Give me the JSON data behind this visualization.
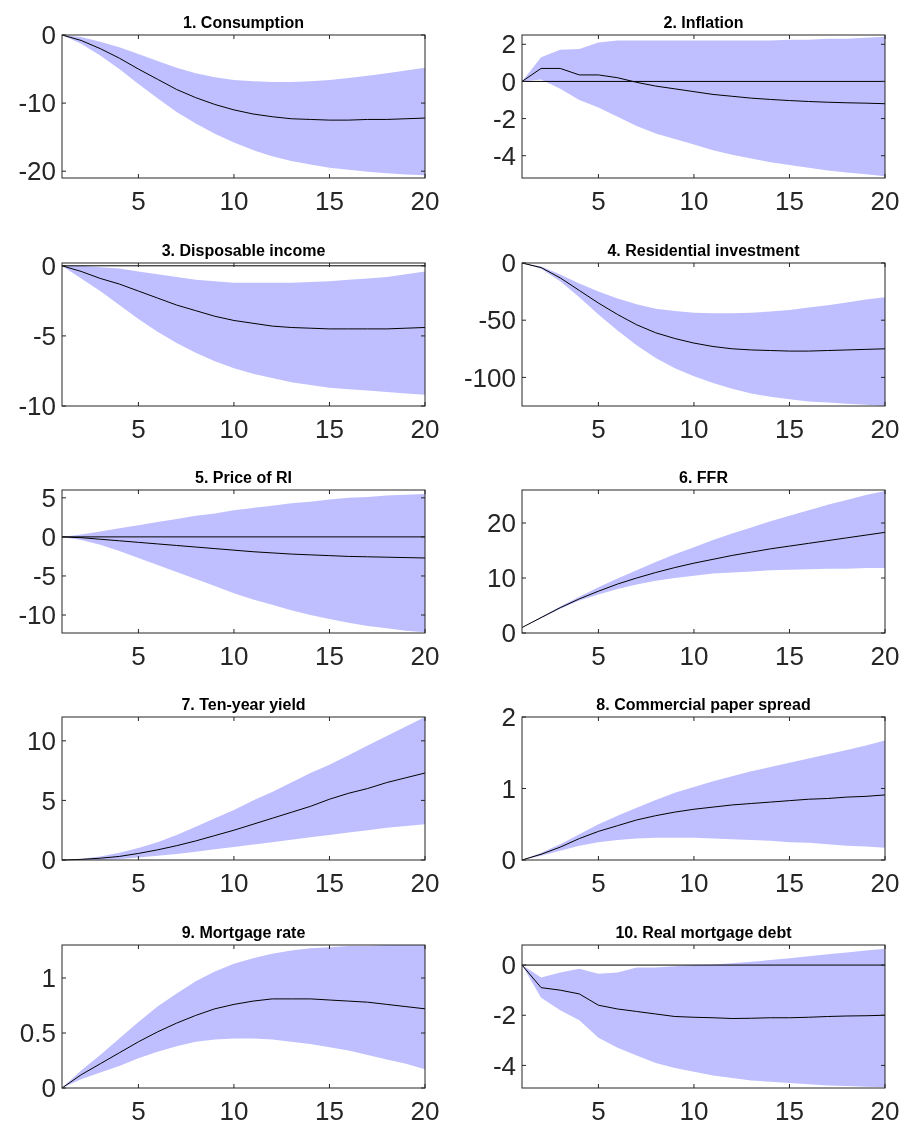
{
  "chart_data": [
    {
      "type": "line",
      "title": "1. Consumption",
      "x": [
        1,
        2,
        3,
        4,
        5,
        6,
        7,
        8,
        9,
        10,
        11,
        12,
        13,
        14,
        15,
        16,
        17,
        18,
        19,
        20
      ],
      "xlim": [
        1,
        20
      ],
      "xticks": [
        5,
        10,
        15,
        20
      ],
      "ylim": [
        -21,
        0
      ],
      "yticks": [
        -20,
        -10,
        0
      ],
      "series": [
        {
          "color": "#000000",
          "values": [
            0,
            -0.8,
            -2,
            -3.4,
            -5,
            -6.5,
            -8,
            -9.2,
            -10.2,
            -11,
            -11.6,
            -12,
            -12.3,
            -12.4,
            -12.5,
            -12.5,
            -12.4,
            -12.4,
            -12.3,
            -12.2
          ],
          "upper": [
            0,
            -0.3,
            -1,
            -1.8,
            -2.8,
            -3.8,
            -4.8,
            -5.6,
            -6.2,
            -6.6,
            -6.8,
            -6.9,
            -6.9,
            -6.8,
            -6.6,
            -6.3,
            -6,
            -5.6,
            -5.2,
            -4.8
          ],
          "lower": [
            0,
            -1.3,
            -3,
            -5,
            -7.2,
            -9.3,
            -11.3,
            -13,
            -14.5,
            -15.8,
            -16.9,
            -17.8,
            -18.5,
            -19,
            -19.5,
            -19.8,
            -20.1,
            -20.3,
            -20.5,
            -20.6
          ]
        }
      ]
    },
    {
      "type": "line",
      "title": "2. Inflation",
      "x": [
        1,
        2,
        3,
        4,
        5,
        6,
        7,
        8,
        9,
        10,
        11,
        12,
        13,
        14,
        15,
        16,
        17,
        18,
        19,
        20
      ],
      "xlim": [
        1,
        20
      ],
      "xticks": [
        5,
        10,
        15,
        20
      ],
      "ylim": [
        -5.2,
        2.5
      ],
      "yticks": [
        -4,
        -2,
        0,
        2
      ],
      "series": [
        {
          "color": "#000000",
          "values": [
            0,
            0.7,
            0.7,
            0.35,
            0.35,
            0.2,
            -0.05,
            -0.25,
            -0.4,
            -0.55,
            -0.7,
            -0.8,
            -0.9,
            -0.97,
            -1.03,
            -1.08,
            -1.12,
            -1.15,
            -1.17,
            -1.2
          ],
          "upper": [
            0,
            1.3,
            1.7,
            1.75,
            2.1,
            2.2,
            2.2,
            2.2,
            2.2,
            2.2,
            2.2,
            2.2,
            2.2,
            2.2,
            2.25,
            2.25,
            2.3,
            2.3,
            2.35,
            2.4
          ],
          "lower": [
            0,
            0.1,
            -0.4,
            -1,
            -1.4,
            -1.9,
            -2.4,
            -2.8,
            -3.1,
            -3.4,
            -3.7,
            -3.95,
            -4.15,
            -4.35,
            -4.5,
            -4.65,
            -4.8,
            -4.9,
            -5,
            -5.1
          ]
        }
      ],
      "ref_lines": [
        {
          "axis": "y",
          "value": 0,
          "color": "#000000"
        }
      ]
    },
    {
      "type": "line",
      "title": "3. Disposable income",
      "x": [
        1,
        2,
        3,
        4,
        5,
        6,
        7,
        8,
        9,
        10,
        11,
        12,
        13,
        14,
        15,
        16,
        17,
        18,
        19,
        20
      ],
      "xlim": [
        1,
        20
      ],
      "xticks": [
        5,
        10,
        15,
        20
      ],
      "ylim": [
        -10,
        0.2
      ],
      "yticks": [
        -10,
        -5,
        0
      ],
      "series": [
        {
          "color": "#000000",
          "values": [
            0,
            -0.4,
            -0.9,
            -1.3,
            -1.8,
            -2.3,
            -2.8,
            -3.2,
            -3.6,
            -3.9,
            -4.1,
            -4.3,
            -4.4,
            -4.45,
            -4.5,
            -4.5,
            -4.5,
            -4.5,
            -4.45,
            -4.4
          ],
          "upper": [
            0,
            0,
            -0.1,
            -0.2,
            -0.4,
            -0.6,
            -0.8,
            -1,
            -1.1,
            -1.2,
            -1.2,
            -1.2,
            -1.2,
            -1.15,
            -1.1,
            -1,
            -0.9,
            -0.8,
            -0.6,
            -0.4
          ],
          "lower": [
            0,
            -0.9,
            -1.8,
            -2.8,
            -3.8,
            -4.7,
            -5.5,
            -6.2,
            -6.8,
            -7.3,
            -7.7,
            -8,
            -8.3,
            -8.5,
            -8.7,
            -8.8,
            -8.9,
            -9,
            -9.1,
            -9.2
          ]
        }
      ],
      "ref_lines": [
        {
          "axis": "y",
          "value": 0,
          "color": "#000000"
        }
      ]
    },
    {
      "type": "line",
      "title": "4. Residential investment",
      "x": [
        1,
        2,
        3,
        4,
        5,
        6,
        7,
        8,
        9,
        10,
        11,
        12,
        13,
        14,
        15,
        16,
        17,
        18,
        19,
        20
      ],
      "xlim": [
        1,
        20
      ],
      "xticks": [
        5,
        10,
        15,
        20
      ],
      "ylim": [
        -125,
        0
      ],
      "yticks": [
        -100,
        -50,
        0
      ],
      "series": [
        {
          "color": "#000000",
          "values": [
            0,
            -4,
            -13,
            -24,
            -35,
            -45,
            -54,
            -61,
            -66,
            -70,
            -73,
            -75,
            -76,
            -76.5,
            -77,
            -77,
            -76.5,
            -76,
            -75.5,
            -75
          ],
          "upper": [
            0,
            -3,
            -10,
            -18,
            -25,
            -31,
            -36,
            -40,
            -42,
            -43.5,
            -44,
            -44,
            -43.5,
            -42.5,
            -41,
            -39,
            -37,
            -34.5,
            -32,
            -30
          ],
          "lower": [
            0,
            -5,
            -16,
            -30,
            -45,
            -59,
            -72,
            -83,
            -92,
            -99,
            -105,
            -110,
            -114,
            -117,
            -119,
            -121,
            -122,
            -123,
            -124,
            -125
          ]
        }
      ]
    },
    {
      "type": "line",
      "title": "5. Price of RI",
      "x": [
        1,
        2,
        3,
        4,
        5,
        6,
        7,
        8,
        9,
        10,
        11,
        12,
        13,
        14,
        15,
        16,
        17,
        18,
        19,
        20
      ],
      "xlim": [
        1,
        20
      ],
      "xticks": [
        5,
        10,
        15,
        20
      ],
      "ylim": [
        -12.3,
        6
      ],
      "yticks": [
        -10,
        -5,
        0,
        5
      ],
      "series": [
        {
          "color": "#000000",
          "values": [
            0,
            -0.1,
            -0.3,
            -0.5,
            -0.7,
            -0.9,
            -1.1,
            -1.3,
            -1.5,
            -1.7,
            -1.9,
            -2.05,
            -2.2,
            -2.3,
            -2.4,
            -2.5,
            -2.55,
            -2.6,
            -2.65,
            -2.7
          ],
          "upper": [
            0,
            0.3,
            0.7,
            1.1,
            1.5,
            1.9,
            2.3,
            2.7,
            3,
            3.4,
            3.7,
            4,
            4.3,
            4.5,
            4.8,
            5,
            5.1,
            5.3,
            5.4,
            5.5
          ],
          "lower": [
            0,
            -0.4,
            -1,
            -1.8,
            -2.7,
            -3.6,
            -4.5,
            -5.4,
            -6.3,
            -7.2,
            -8,
            -8.7,
            -9.4,
            -10,
            -10.5,
            -11,
            -11.4,
            -11.7,
            -12,
            -12.2
          ]
        }
      ],
      "ref_lines": [
        {
          "axis": "y",
          "value": 0,
          "color": "#000000"
        }
      ]
    },
    {
      "type": "line",
      "title": "6. FFR",
      "x": [
        1,
        2,
        3,
        4,
        5,
        6,
        7,
        8,
        9,
        10,
        11,
        12,
        13,
        14,
        15,
        16,
        17,
        18,
        19,
        20
      ],
      "xlim": [
        1,
        20
      ],
      "xticks": [
        5,
        10,
        15,
        20
      ],
      "ylim": [
        0,
        26
      ],
      "yticks": [
        0,
        10,
        20
      ],
      "series": [
        {
          "color": "#000000",
          "values": [
            1,
            2.8,
            4.6,
            6.2,
            7.6,
            8.9,
            10,
            11,
            11.9,
            12.7,
            13.4,
            14.1,
            14.7,
            15.3,
            15.8,
            16.3,
            16.8,
            17.3,
            17.8,
            18.3
          ],
          "upper": [
            1,
            2.9,
            4.8,
            6.6,
            8.3,
            9.9,
            11.4,
            12.9,
            14.3,
            15.6,
            16.9,
            18.1,
            19.2,
            20.3,
            21.3,
            22.3,
            23.3,
            24.2,
            25.1,
            25.8
          ],
          "lower": [
            1,
            2.7,
            4.4,
            5.9,
            7,
            8,
            8.8,
            9.5,
            10,
            10.4,
            10.8,
            11,
            11.2,
            11.4,
            11.5,
            11.6,
            11.7,
            11.7,
            11.8,
            11.8
          ]
        }
      ]
    },
    {
      "type": "line",
      "title": "7. Ten-year yield",
      "x": [
        1,
        2,
        3,
        4,
        5,
        6,
        7,
        8,
        9,
        10,
        11,
        12,
        13,
        14,
        15,
        16,
        17,
        18,
        19,
        20
      ],
      "xlim": [
        1,
        20
      ],
      "xticks": [
        5,
        10,
        15,
        20
      ],
      "ylim": [
        0,
        12
      ],
      "yticks": [
        0,
        5,
        10
      ],
      "series": [
        {
          "color": "#000000",
          "values": [
            0,
            0.05,
            0.15,
            0.3,
            0.55,
            0.85,
            1.2,
            1.6,
            2.05,
            2.5,
            3,
            3.5,
            4,
            4.5,
            5.1,
            5.6,
            6,
            6.5,
            6.9,
            7.3
          ],
          "upper": [
            0,
            0.1,
            0.3,
            0.6,
            1,
            1.5,
            2.1,
            2.8,
            3.5,
            4.2,
            5,
            5.7,
            6.5,
            7.3,
            8,
            8.8,
            9.6,
            10.4,
            11.2,
            12
          ],
          "lower": [
            0,
            0,
            0.02,
            0.08,
            0.2,
            0.35,
            0.5,
            0.7,
            0.9,
            1.1,
            1.3,
            1.5,
            1.7,
            1.9,
            2.1,
            2.3,
            2.5,
            2.7,
            2.85,
            3
          ]
        }
      ]
    },
    {
      "type": "line",
      "title": "8. Commercial paper spread",
      "x": [
        1,
        2,
        3,
        4,
        5,
        6,
        7,
        8,
        9,
        10,
        11,
        12,
        13,
        14,
        15,
        16,
        17,
        18,
        19,
        20
      ],
      "xlim": [
        1,
        20
      ],
      "xticks": [
        5,
        10,
        15,
        20
      ],
      "ylim": [
        0,
        2
      ],
      "yticks": [
        0,
        1,
        2
      ],
      "series": [
        {
          "color": "#000000",
          "values": [
            0,
            0.08,
            0.18,
            0.3,
            0.4,
            0.48,
            0.56,
            0.62,
            0.67,
            0.71,
            0.74,
            0.77,
            0.79,
            0.81,
            0.83,
            0.85,
            0.86,
            0.88,
            0.89,
            0.91
          ],
          "upper": [
            0,
            0.1,
            0.22,
            0.36,
            0.5,
            0.62,
            0.73,
            0.84,
            0.94,
            1.02,
            1.1,
            1.17,
            1.24,
            1.3,
            1.36,
            1.42,
            1.48,
            1.54,
            1.6,
            1.67
          ],
          "lower": [
            0,
            0.06,
            0.13,
            0.2,
            0.25,
            0.28,
            0.3,
            0.31,
            0.31,
            0.31,
            0.3,
            0.29,
            0.28,
            0.27,
            0.25,
            0.24,
            0.22,
            0.2,
            0.19,
            0.17
          ]
        }
      ]
    },
    {
      "type": "line",
      "title": "9. Mortgage rate",
      "x": [
        1,
        2,
        3,
        4,
        5,
        6,
        7,
        8,
        9,
        10,
        11,
        12,
        13,
        14,
        15,
        16,
        17,
        18,
        19,
        20
      ],
      "xlim": [
        1,
        20
      ],
      "xticks": [
        5,
        10,
        15,
        20
      ],
      "ylim": [
        0,
        1.3
      ],
      "yticks": [
        0,
        0.5,
        1
      ],
      "series": [
        {
          "color": "#000000",
          "values": [
            0,
            0.12,
            0.22,
            0.32,
            0.42,
            0.51,
            0.59,
            0.66,
            0.72,
            0.76,
            0.79,
            0.81,
            0.81,
            0.81,
            0.8,
            0.79,
            0.78,
            0.76,
            0.74,
            0.72
          ],
          "upper": [
            0,
            0.16,
            0.3,
            0.45,
            0.6,
            0.74,
            0.86,
            0.97,
            1.06,
            1.13,
            1.18,
            1.22,
            1.25,
            1.27,
            1.28,
            1.29,
            1.29,
            1.3,
            1.3,
            1.3
          ],
          "lower": [
            0,
            0.08,
            0.14,
            0.2,
            0.27,
            0.33,
            0.38,
            0.42,
            0.44,
            0.45,
            0.45,
            0.44,
            0.42,
            0.4,
            0.37,
            0.34,
            0.3,
            0.26,
            0.22,
            0.17
          ]
        }
      ]
    },
    {
      "type": "line",
      "title": "10. Real mortgage debt",
      "x": [
        1,
        2,
        3,
        4,
        5,
        6,
        7,
        8,
        9,
        10,
        11,
        12,
        13,
        14,
        15,
        16,
        17,
        18,
        19,
        20
      ],
      "xlim": [
        1,
        20
      ],
      "xticks": [
        5,
        10,
        15,
        20
      ],
      "ylim": [
        -4.9,
        0.8
      ],
      "yticks": [
        -4,
        -2,
        0
      ],
      "series": [
        {
          "color": "#000000",
          "values": [
            0,
            -0.9,
            -1,
            -1.15,
            -1.6,
            -1.75,
            -1.85,
            -1.95,
            -2.05,
            -2.08,
            -2.1,
            -2.13,
            -2.12,
            -2.1,
            -2.1,
            -2.08,
            -2.05,
            -2.03,
            -2.02,
            -2
          ],
          "upper": [
            0,
            -0.5,
            -0.3,
            -0.15,
            -0.35,
            -0.3,
            -0.1,
            -0.1,
            -0.05,
            0,
            0.02,
            0.07,
            0.13,
            0.2,
            0.27,
            0.35,
            0.43,
            0.5,
            0.58,
            0.65
          ],
          "lower": [
            0,
            -1.3,
            -1.8,
            -2.2,
            -2.9,
            -3.3,
            -3.6,
            -3.9,
            -4.1,
            -4.25,
            -4.4,
            -4.5,
            -4.6,
            -4.65,
            -4.7,
            -4.75,
            -4.8,
            -4.82,
            -4.85,
            -4.87
          ]
        }
      ],
      "ref_lines": [
        {
          "axis": "y",
          "value": 0,
          "color": "#000000"
        }
      ]
    }
  ]
}
